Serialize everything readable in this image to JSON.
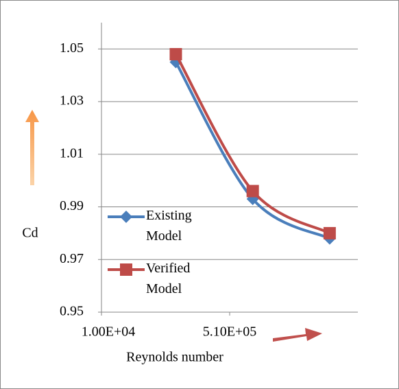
{
  "chart_data": {
    "type": "scatter",
    "x_label": "Reynolds number",
    "y_label": "Cd",
    "xlim": [
      10000,
      1010000
    ],
    "xticks": [
      {
        "value": 10000,
        "label": "1.00E+04"
      },
      {
        "value": 510000,
        "label": "5.10E+05"
      }
    ],
    "ylim": [
      0.95,
      1.06
    ],
    "yticks": [
      0.95,
      0.97,
      0.99,
      1.01,
      1.03,
      1.05
    ],
    "grid": true,
    "x": [
      300000,
      600000,
      900000
    ],
    "series": [
      {
        "name": "Existing Model",
        "color": "#4a7ebb",
        "marker": "diamond",
        "values": [
          1.045,
          0.993,
          0.978
        ]
      },
      {
        "name": "Verified Model",
        "color": "#be4b48",
        "marker": "square",
        "values": [
          1.048,
          0.996,
          0.98
        ]
      }
    ]
  }
}
